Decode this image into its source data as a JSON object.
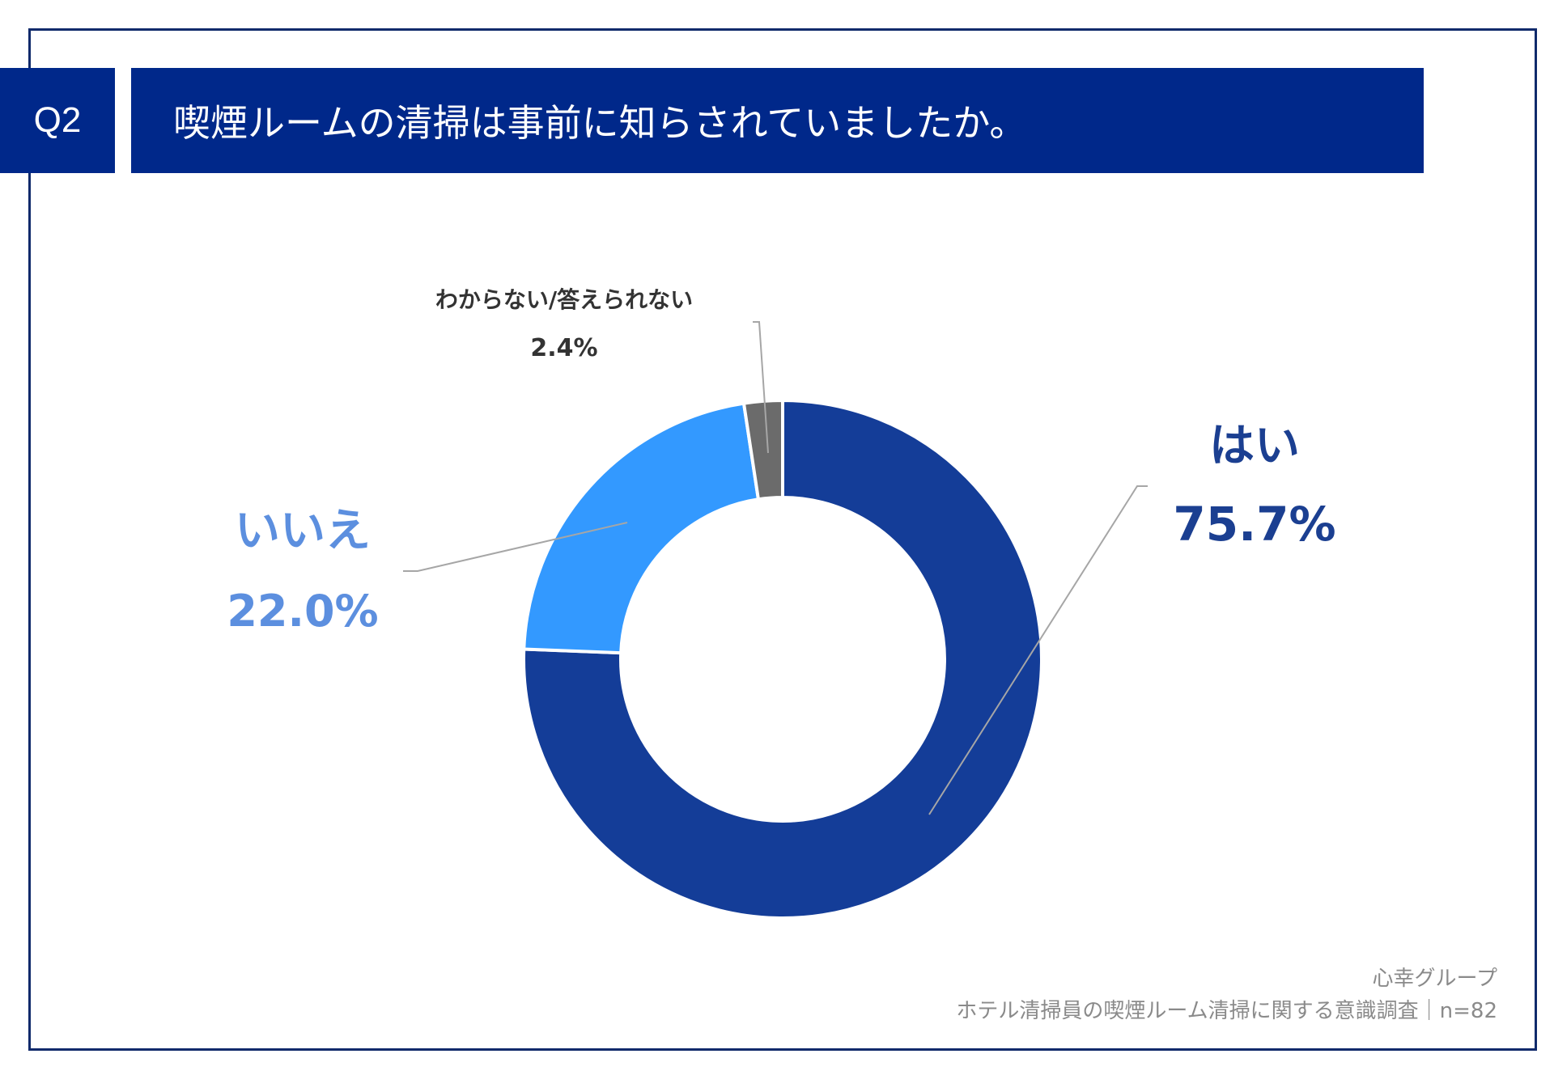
{
  "header": {
    "question_no": "Q2",
    "title": "喫煙ルームの清掃は事前に知らされていましたか。"
  },
  "footer": {
    "source_line1": "心幸グループ",
    "source_line2": "ホテル清掃員の喫煙ルーム清掃に関する意識調査｜n=82"
  },
  "colors": {
    "frame": "#102a6b",
    "header_bg": "#00288a",
    "yes": "#143d98",
    "no": "#3399ff",
    "unknown": "#6b6b6b",
    "yes_label": "#1b3f91",
    "no_label": "#5c8fdf",
    "unknown_label": "#333333",
    "leader": "#a6a6a6"
  },
  "chart_data": {
    "type": "pie",
    "style": "donut",
    "start_angle_deg": 0,
    "direction": "clockwise",
    "slices": [
      {
        "key": "yes",
        "label": "はい",
        "value": 75.7,
        "value_label": "75.7%"
      },
      {
        "key": "no",
        "label": "いいえ",
        "value": 22.0,
        "value_label": "22.0%"
      },
      {
        "key": "unknown",
        "label": "わからない/答えられない",
        "value": 2.4,
        "value_label": "2.4%"
      }
    ]
  }
}
